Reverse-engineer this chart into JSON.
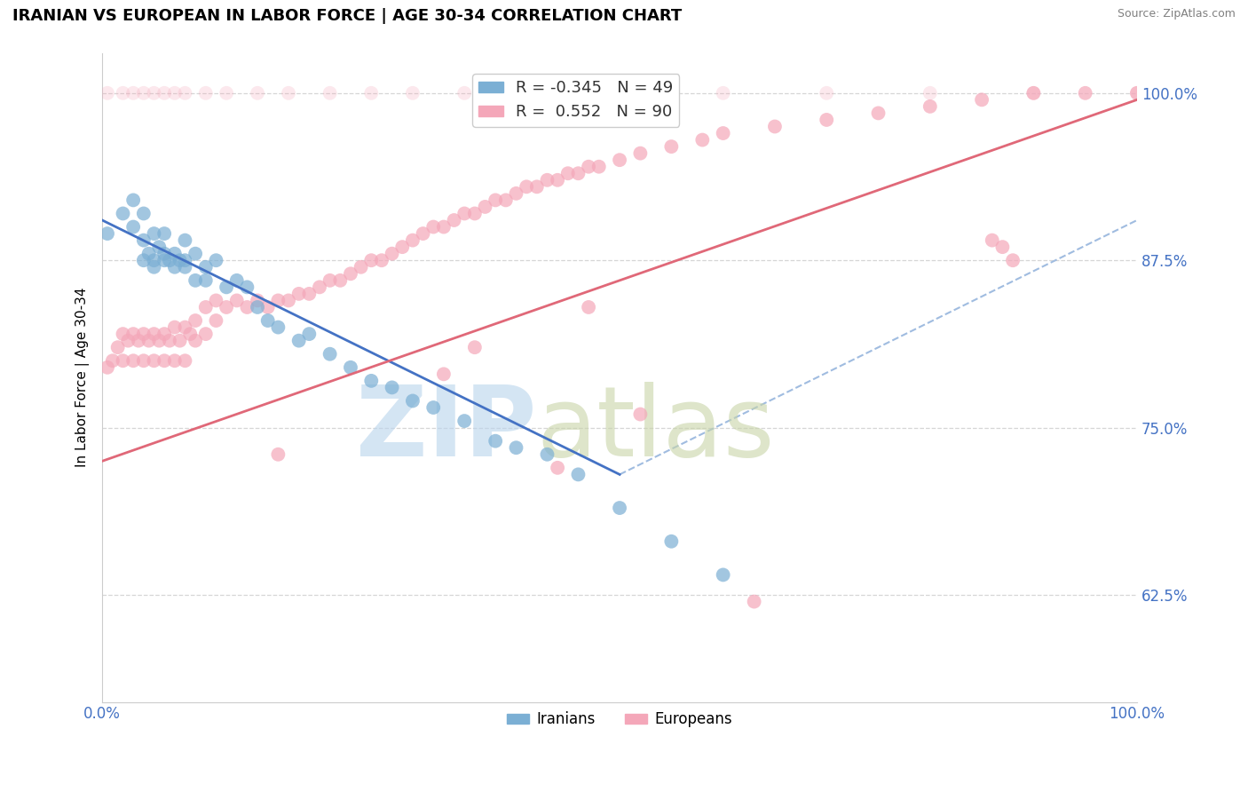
{
  "title": "IRANIAN VS EUROPEAN IN LABOR FORCE | AGE 30-34 CORRELATION CHART",
  "source": "Source: ZipAtlas.com",
  "ylabel": "In Labor Force | Age 30-34",
  "xlim": [
    0.0,
    1.0
  ],
  "ylim": [
    0.545,
    1.03
  ],
  "ytick_labels": [
    "62.5%",
    "75.0%",
    "87.5%",
    "100.0%"
  ],
  "ytick_values": [
    0.625,
    0.75,
    0.875,
    1.0
  ],
  "xtick_labels": [
    "0.0%",
    "100.0%"
  ],
  "xtick_values": [
    0.0,
    1.0
  ],
  "iranian_R": -0.345,
  "iranian_N": 49,
  "european_R": 0.552,
  "european_N": 90,
  "iranian_color": "#7bafd4",
  "european_color": "#f4a7b9",
  "iranian_line_color": "#4472c4",
  "european_line_color": "#e06878",
  "dash_color": "#a0bce0",
  "background_color": "#ffffff",
  "grid_color": "#cccccc",
  "iranians_x": [
    0.005,
    0.02,
    0.03,
    0.03,
    0.04,
    0.04,
    0.04,
    0.045,
    0.05,
    0.05,
    0.05,
    0.055,
    0.06,
    0.06,
    0.06,
    0.065,
    0.07,
    0.07,
    0.075,
    0.08,
    0.08,
    0.08,
    0.09,
    0.09,
    0.1,
    0.1,
    0.11,
    0.12,
    0.13,
    0.14,
    0.15,
    0.16,
    0.17,
    0.19,
    0.2,
    0.22,
    0.24,
    0.26,
    0.28,
    0.3,
    0.32,
    0.35,
    0.38,
    0.4,
    0.43,
    0.46,
    0.5,
    0.55,
    0.6
  ],
  "iranians_y": [
    0.895,
    0.91,
    0.92,
    0.9,
    0.91,
    0.89,
    0.875,
    0.88,
    0.875,
    0.87,
    0.895,
    0.885,
    0.875,
    0.895,
    0.88,
    0.875,
    0.88,
    0.87,
    0.875,
    0.87,
    0.875,
    0.89,
    0.86,
    0.88,
    0.87,
    0.86,
    0.875,
    0.855,
    0.86,
    0.855,
    0.84,
    0.83,
    0.825,
    0.815,
    0.82,
    0.805,
    0.795,
    0.785,
    0.78,
    0.77,
    0.765,
    0.755,
    0.74,
    0.735,
    0.73,
    0.715,
    0.69,
    0.665,
    0.64
  ],
  "europeans_x": [
    0.005,
    0.01,
    0.015,
    0.02,
    0.02,
    0.025,
    0.03,
    0.03,
    0.035,
    0.04,
    0.04,
    0.045,
    0.05,
    0.05,
    0.055,
    0.06,
    0.06,
    0.065,
    0.07,
    0.07,
    0.075,
    0.08,
    0.08,
    0.085,
    0.09,
    0.09,
    0.1,
    0.1,
    0.11,
    0.11,
    0.12,
    0.13,
    0.14,
    0.15,
    0.16,
    0.17,
    0.18,
    0.19,
    0.2,
    0.21,
    0.22,
    0.23,
    0.24,
    0.25,
    0.26,
    0.27,
    0.28,
    0.29,
    0.3,
    0.31,
    0.32,
    0.33,
    0.34,
    0.35,
    0.36,
    0.37,
    0.38,
    0.39,
    0.4,
    0.41,
    0.42,
    0.43,
    0.44,
    0.45,
    0.46,
    0.47,
    0.48,
    0.5,
    0.52,
    0.55,
    0.58,
    0.6,
    0.65,
    0.7,
    0.75,
    0.8,
    0.85,
    0.9,
    0.95,
    1.0,
    0.88,
    0.87,
    0.86,
    0.17,
    0.33,
    0.36,
    0.47,
    0.63,
    0.52,
    0.44
  ],
  "europeans_y": [
    0.795,
    0.8,
    0.81,
    0.8,
    0.82,
    0.815,
    0.8,
    0.82,
    0.815,
    0.8,
    0.82,
    0.815,
    0.8,
    0.82,
    0.815,
    0.8,
    0.82,
    0.815,
    0.8,
    0.825,
    0.815,
    0.8,
    0.825,
    0.82,
    0.815,
    0.83,
    0.82,
    0.84,
    0.83,
    0.845,
    0.84,
    0.845,
    0.84,
    0.845,
    0.84,
    0.845,
    0.845,
    0.85,
    0.85,
    0.855,
    0.86,
    0.86,
    0.865,
    0.87,
    0.875,
    0.875,
    0.88,
    0.885,
    0.89,
    0.895,
    0.9,
    0.9,
    0.905,
    0.91,
    0.91,
    0.915,
    0.92,
    0.92,
    0.925,
    0.93,
    0.93,
    0.935,
    0.935,
    0.94,
    0.94,
    0.945,
    0.945,
    0.95,
    0.955,
    0.96,
    0.965,
    0.97,
    0.975,
    0.98,
    0.985,
    0.99,
    0.995,
    1.0,
    1.0,
    1.0,
    0.875,
    0.885,
    0.89,
    0.73,
    0.79,
    0.81,
    0.84,
    0.62,
    0.76,
    0.72
  ],
  "top_europeans_x": [
    0.005,
    0.02,
    0.03,
    0.04,
    0.05,
    0.06,
    0.07,
    0.08,
    0.1,
    0.12,
    0.15,
    0.18,
    0.22,
    0.26,
    0.3,
    0.35,
    0.4,
    0.5,
    0.6,
    0.7,
    0.8,
    0.9,
    1.0
  ],
  "top_europeans_y": [
    1.0,
    1.0,
    1.0,
    1.0,
    1.0,
    1.0,
    1.0,
    1.0,
    1.0,
    1.0,
    1.0,
    1.0,
    1.0,
    1.0,
    1.0,
    1.0,
    1.0,
    1.0,
    1.0,
    1.0,
    1.0,
    1.0,
    1.0
  ]
}
